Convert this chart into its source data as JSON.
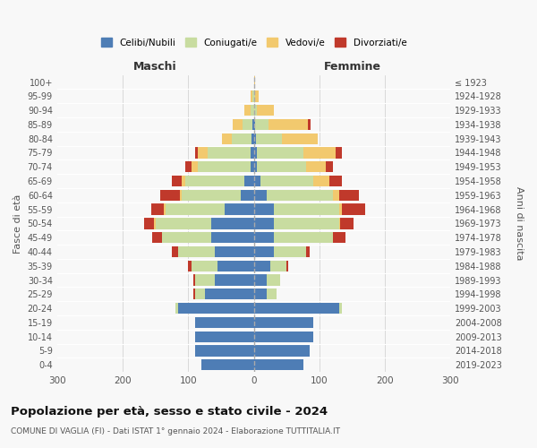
{
  "age_groups": [
    "0-4",
    "5-9",
    "10-14",
    "15-19",
    "20-24",
    "25-29",
    "30-34",
    "35-39",
    "40-44",
    "45-49",
    "50-54",
    "55-59",
    "60-64",
    "65-69",
    "70-74",
    "75-79",
    "80-84",
    "85-89",
    "90-94",
    "95-99",
    "100+"
  ],
  "birth_years": [
    "2019-2023",
    "2014-2018",
    "2009-2013",
    "2004-2008",
    "1999-2003",
    "1994-1998",
    "1989-1993",
    "1984-1988",
    "1979-1983",
    "1974-1978",
    "1969-1973",
    "1964-1968",
    "1959-1963",
    "1954-1958",
    "1949-1953",
    "1944-1948",
    "1939-1943",
    "1934-1938",
    "1929-1933",
    "1924-1928",
    "≤ 1923"
  ],
  "male": {
    "celibi": [
      80,
      90,
      90,
      90,
      115,
      75,
      60,
      55,
      60,
      65,
      65,
      45,
      20,
      15,
      5,
      5,
      3,
      2,
      0,
      0,
      0
    ],
    "coniugati": [
      0,
      0,
      0,
      0,
      5,
      15,
      30,
      40,
      55,
      75,
      85,
      90,
      90,
      90,
      80,
      65,
      30,
      15,
      5,
      2,
      0
    ],
    "vedovi": [
      0,
      0,
      0,
      0,
      0,
      0,
      0,
      0,
      0,
      0,
      2,
      2,
      3,
      5,
      10,
      15,
      15,
      15,
      10,
      3,
      0
    ],
    "divorziati": [
      0,
      0,
      0,
      0,
      0,
      2,
      2,
      5,
      10,
      15,
      15,
      20,
      30,
      15,
      10,
      5,
      0,
      0,
      0,
      0,
      0
    ]
  },
  "female": {
    "nubili": [
      75,
      85,
      90,
      90,
      130,
      20,
      20,
      25,
      30,
      30,
      30,
      30,
      20,
      10,
      5,
      5,
      3,
      2,
      0,
      0,
      0
    ],
    "coniugate": [
      0,
      0,
      0,
      0,
      5,
      15,
      20,
      25,
      50,
      90,
      100,
      100,
      100,
      80,
      75,
      70,
      40,
      20,
      5,
      2,
      0
    ],
    "vedove": [
      0,
      0,
      0,
      0,
      0,
      0,
      0,
      0,
      0,
      0,
      2,
      5,
      10,
      25,
      30,
      50,
      55,
      60,
      25,
      5,
      2
    ],
    "divorziate": [
      0,
      0,
      0,
      0,
      0,
      0,
      0,
      2,
      5,
      20,
      20,
      35,
      30,
      20,
      10,
      10,
      0,
      5,
      0,
      0,
      0
    ]
  },
  "colors": {
    "celibi": "#4e7db5",
    "coniugati": "#c8dca0",
    "vedovi": "#f2c96e",
    "divorziati": "#c0392b"
  },
  "xlim": 300,
  "title": "Popolazione per età, sesso e stato civile - 2024",
  "subtitle": "COMUNE DI VAGLIA (FI) - Dati ISTAT 1° gennaio 2024 - Elaborazione TUTTITALIA.IT",
  "xlabel_left": "Maschi",
  "xlabel_right": "Femmine",
  "ylabel_left": "Fasce di età",
  "ylabel_right": "Anni di nascita",
  "legend_labels": [
    "Celibi/Nubili",
    "Coniugati/e",
    "Vedovi/e",
    "Divorziati/e"
  ],
  "background_color": "#f8f8f8"
}
